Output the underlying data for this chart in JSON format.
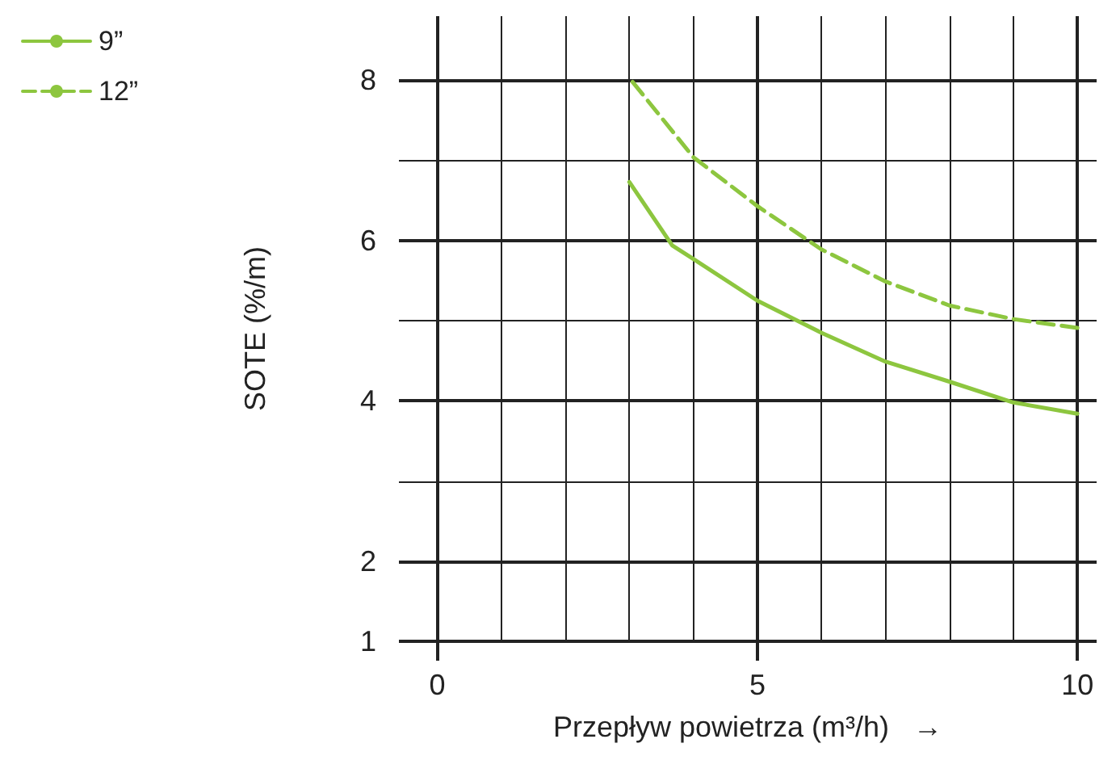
{
  "chart_data": {
    "type": "line",
    "xlabel": "Przepływ powietrza (m³/h)   →",
    "ylabel": "SOTE (%/m)",
    "xlim": [
      -0.6,
      10.3
    ],
    "xticks": [
      0,
      {
        "value": 1,
        "label": null
      },
      {
        "value": 2,
        "label": null
      },
      {
        "value": 3,
        "label": null
      },
      {
        "value": 4,
        "label": null
      },
      5,
      {
        "value": 6,
        "label": null
      },
      {
        "value": 7,
        "label": null
      },
      {
        "value": 8,
        "label": null
      },
      {
        "value": 9,
        "label": null
      },
      10
    ],
    "ylim": [
      1,
      8.8
    ],
    "yticks": [
      1,
      2,
      {
        "value": 3,
        "label": null
      },
      4,
      {
        "value": 5,
        "label": null
      },
      6,
      {
        "value": 7,
        "label": null
      },
      8
    ],
    "grid": true,
    "legend": "top left",
    "marker": "none",
    "series": [
      {
        "name": "9”",
        "color": "#8dc63f",
        "line_style": "solid",
        "x": [
          3,
          3.67,
          4,
          5,
          6,
          7,
          8,
          9,
          10
        ],
        "values": [
          6.73,
          5.94,
          5.77,
          5.25,
          4.85,
          4.49,
          4.24,
          3.98,
          3.84
        ]
      },
      {
        "name": "12”",
        "color": "#8dc63f",
        "line_style": "dashed",
        "x": [
          3.05,
          4,
          5,
          6,
          7,
          8,
          9,
          10
        ],
        "values": [
          7.98,
          7.04,
          6.43,
          5.89,
          5.49,
          5.19,
          5.02,
          4.91
        ]
      }
    ]
  }
}
